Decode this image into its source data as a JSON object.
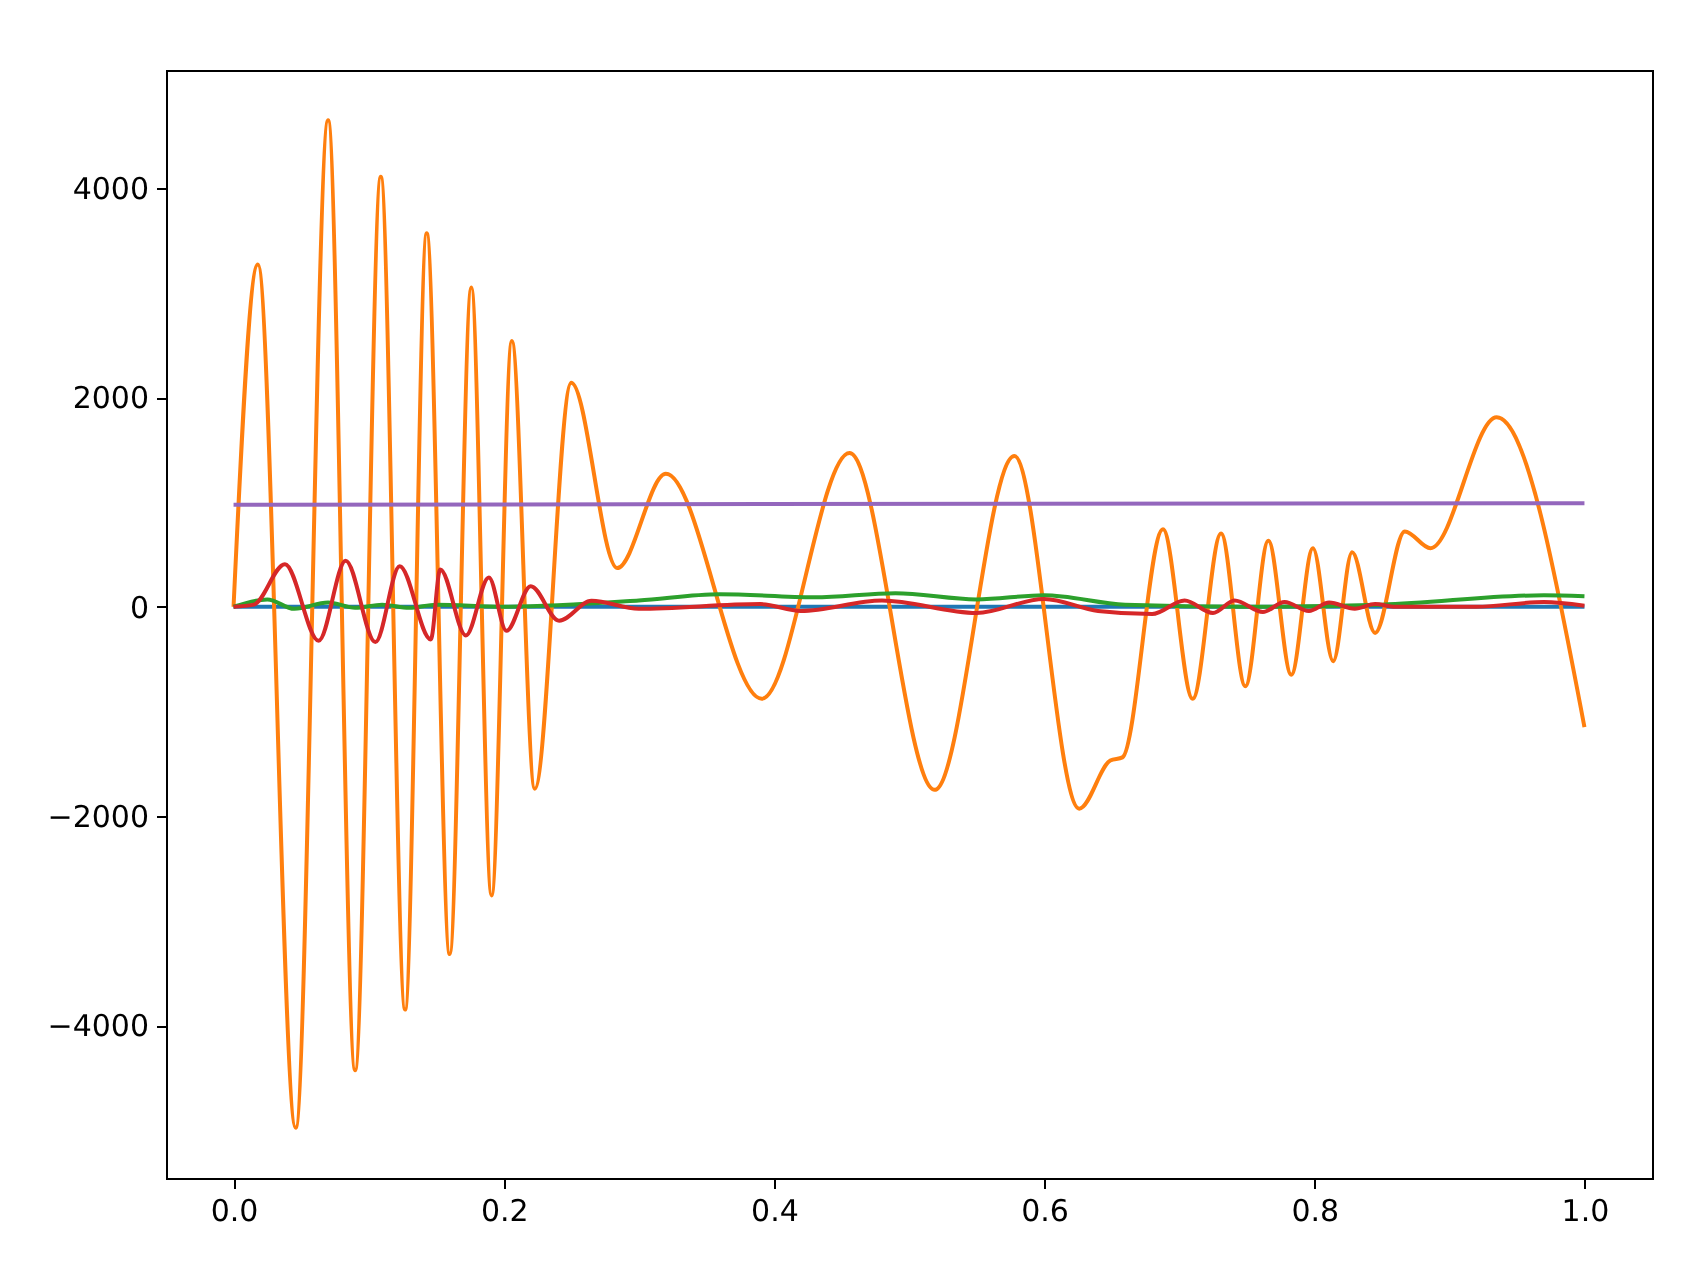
{
  "chart_data": {
    "type": "line",
    "xlim": [
      -0.05,
      1.05
    ],
    "ylim": [
      -5460,
      5130
    ],
    "xticks": [
      {
        "value": 0,
        "label": "0.0"
      },
      {
        "value": 0.2,
        "label": "0.2"
      },
      {
        "value": 0.4,
        "label": "0.4"
      },
      {
        "value": 0.6,
        "label": "0.6"
      },
      {
        "value": 0.8,
        "label": "0.8"
      },
      {
        "value": 1,
        "label": "1.0"
      }
    ],
    "yticks": [
      {
        "value": -4000,
        "label": "−4000"
      },
      {
        "value": -2000,
        "label": "−2000"
      },
      0,
      2000,
      4000
    ],
    "series": [
      {
        "color": "#1f77b4",
        "x": [
          0,
          1
        ],
        "values": [
          0,
          0
        ]
      },
      {
        "color": "#ff7f0e",
        "x": [
          0,
          0.018,
          0.046,
          0.07,
          0.09,
          0.109,
          0.127,
          0.143,
          0.16,
          0.176,
          0.191,
          0.206,
          0.223,
          0.25,
          0.284,
          0.32,
          0.391,
          0.456,
          0.519,
          0.578,
          0.626,
          0.649,
          0.658,
          0.688,
          0.71,
          0.731,
          0.749,
          0.766,
          0.783,
          0.799,
          0.814,
          0.828,
          0.845,
          0.867,
          0.886,
          0.935,
          1.0
        ],
        "values": [
          0,
          3270,
          -4980,
          4650,
          -4430,
          4110,
          -3850,
          3570,
          -3320,
          3050,
          -2760,
          2540,
          -1740,
          2140,
          370,
          1270,
          -880,
          1470,
          -1750,
          1440,
          -1930,
          -1470,
          -1440,
          740,
          -880,
          700,
          -760,
          630,
          -650,
          560,
          -520,
          520,
          -250,
          720,
          560,
          1810,
          -1150
        ]
      },
      {
        "color": "#2ca02c",
        "x": [
          0,
          0.025,
          0.045,
          0.07,
          0.09,
          0.11,
          0.13,
          0.15,
          0.2,
          0.3,
          0.36,
          0.43,
          0.49,
          0.55,
          0.6,
          0.66,
          0.75,
          0.85,
          0.97,
          1.0
        ],
        "values": [
          0,
          70,
          -20,
          40,
          -10,
          20,
          -10,
          20,
          0,
          60,
          120,
          90,
          130,
          70,
          110,
          20,
          0,
          20,
          110,
          100
        ]
      },
      {
        "color": "#d62728",
        "x": [
          0,
          0.015,
          0.038,
          0.063,
          0.083,
          0.105,
          0.123,
          0.146,
          0.153,
          0.172,
          0.189,
          0.202,
          0.22,
          0.241,
          0.265,
          0.3,
          0.39,
          0.42,
          0.48,
          0.55,
          0.6,
          0.64,
          0.68,
          0.704,
          0.725,
          0.741,
          0.762,
          0.778,
          0.796,
          0.811,
          0.83,
          0.845,
          0.86,
          0.92,
          0.97,
          1.0
        ],
        "values": [
          0,
          20,
          407,
          -325,
          440,
          -338,
          388,
          -312,
          357,
          -274,
          280,
          -230,
          197,
          -134,
          57,
          -20,
          25,
          -40,
          60,
          -60,
          75,
          -40,
          -70,
          60,
          -60,
          60,
          -50,
          45,
          -40,
          40,
          -20,
          25,
          0,
          0,
          45,
          10
        ]
      },
      {
        "color": "#9467bd",
        "x": [
          0,
          1
        ],
        "values": [
          975,
          990
        ]
      }
    ]
  }
}
